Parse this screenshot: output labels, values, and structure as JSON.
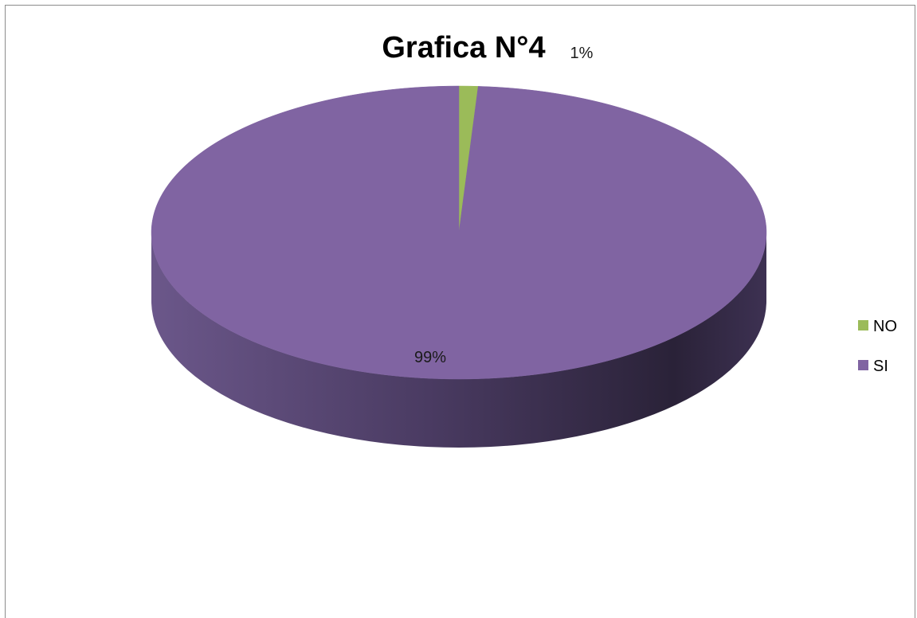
{
  "chart_data": {
    "type": "pie",
    "title": "Grafica N°4",
    "categories": [
      "NO",
      "SI"
    ],
    "values": [
      1,
      99
    ],
    "data_labels": [
      "1%",
      "99%"
    ],
    "colors": [
      "#9bbb59",
      "#8064a2"
    ],
    "legend_position": "right",
    "style": "3d"
  }
}
